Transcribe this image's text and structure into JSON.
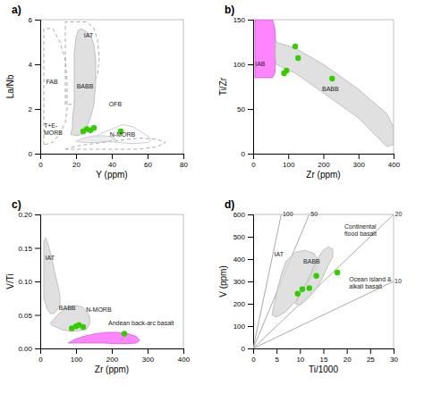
{
  "chart_data": [
    {
      "type": "scatter",
      "title": "a)",
      "xlabel": "Y (ppm)",
      "ylabel": "La/Nb",
      "xlim": [
        0,
        80
      ],
      "ylim": [
        0,
        6
      ],
      "xticks": [
        0,
        20,
        40,
        60,
        80
      ],
      "yticks": [
        0,
        2,
        4,
        6
      ],
      "series": [
        {
          "type": "line",
          "line_style": "dashed",
          "color": "#aaaaaa",
          "x": [
            14,
            18,
            25,
            35,
            45,
            55,
            65,
            70,
            65,
            55,
            45,
            35,
            25,
            18,
            14
          ],
          "values": [
            0.2,
            0.3,
            0.4,
            0.5,
            0.6,
            0.7,
            0.65,
            0.5,
            0.3,
            0.2,
            0.2,
            0.2,
            0.2,
            0.2,
            0.2
          ]
        },
        {
          "type": "line",
          "line_style": "dashed",
          "color": "#aaaaaa",
          "x": [
            2,
            2,
            7,
            11,
            14,
            15,
            15,
            14,
            11,
            7,
            2
          ],
          "values": [
            0.4,
            5.6,
            5.6,
            5.0,
            4.2,
            3.2,
            2.0,
            1.4,
            0.9,
            0.5,
            0.4
          ]
        },
        {
          "type": "line",
          "line_style": "dashed",
          "color": "#aaaaaa",
          "x": [
            14,
            14,
            17,
            21,
            26,
            30,
            32,
            33,
            32,
            28,
            24,
            20,
            17,
            14
          ],
          "values": [
            2.2,
            5.9,
            5.9,
            5.9,
            5.9,
            5.6,
            5.1,
            4.3,
            3.5,
            3.0,
            2.7,
            2.4,
            2.2,
            2.2
          ]
        },
        {
          "type": "line",
          "line_style": "solid",
          "color": "#ccccdd",
          "x": [
            28,
            34,
            40,
            46,
            52,
            56,
            60,
            62,
            60,
            52,
            44,
            36,
            28
          ],
          "values": [
            0.6,
            0.9,
            1.1,
            1.3,
            1.2,
            1.0,
            0.8,
            0.6,
            0.5,
            0.45,
            0.5,
            0.55,
            0.6
          ]
        },
        {
          "type": "area",
          "color": "#e8e8f0",
          "x": [
            20,
            24,
            30,
            36,
            40,
            42,
            38,
            32,
            26,
            22,
            20
          ],
          "values": [
            0.55,
            0.7,
            0.8,
            0.8,
            0.75,
            0.65,
            0.55,
            0.5,
            0.5,
            0.52,
            0.55
          ]
        },
        {
          "type": "area",
          "color": "#d8d8d8",
          "x": [
            17,
            18,
            18,
            19,
            19,
            19,
            20,
            21,
            23,
            25,
            28,
            30,
            31,
            31,
            30,
            28,
            26,
            24,
            21,
            18
          ],
          "values": [
            0.85,
            1.2,
            1.6,
            2.2,
            3.5,
            4.5,
            5.2,
            5.5,
            5.6,
            5.5,
            5.3,
            4.9,
            4.2,
            3.2,
            2.2,
            1.6,
            1.2,
            0.9,
            0.8,
            0.85
          ]
        },
        {
          "type": "scatter",
          "color": "#33cc00",
          "x": [
            24,
            26,
            28,
            30,
            45
          ],
          "values": [
            1.0,
            1.1,
            1.05,
            1.15,
            1.0
          ]
        }
      ],
      "annotations": [
        {
          "text": "IAT",
          "x": 27,
          "y": 5.3
        },
        {
          "text": "FAB",
          "x": 6.5,
          "y": 3.2
        },
        {
          "text": "BABB",
          "x": 25,
          "y": 3.0
        },
        {
          "text": "OFB",
          "x": 42,
          "y": 2.2
        },
        {
          "text": "T+E-\nMORB",
          "x": 2,
          "y": 1.1
        },
        {
          "text": "N-MORB",
          "x": 46,
          "y": 0.85
        }
      ]
    },
    {
      "type": "scatter",
      "title": "b)",
      "xlabel": "Zr (ppm)",
      "ylabel": "Ti/Zr",
      "xlim": [
        0,
        400
      ],
      "ylim": [
        0,
        150
      ],
      "xticks": [
        0,
        100,
        200,
        300,
        400
      ],
      "yticks": [
        0,
        50,
        100,
        150
      ],
      "series": [
        {
          "type": "area",
          "color": "#ff66ff",
          "x": [
            5,
            5,
            55,
            62,
            65,
            62,
            55,
            5
          ],
          "values": [
            85,
            150,
            150,
            140,
            120,
            90,
            85,
            85
          ]
        },
        {
          "type": "area",
          "color": "#d8d8d8",
          "x": [
            62,
            65,
            120,
            200,
            300,
            380,
            400,
            400,
            380,
            300,
            200,
            120,
            65,
            62,
            62
          ],
          "values": [
            128,
            125,
            118,
            100,
            72,
            45,
            30,
            10,
            8,
            40,
            68,
            90,
            100,
            110,
            128
          ]
        },
        {
          "type": "scatter",
          "color": "#33cc00",
          "x": [
            88,
            95,
            120,
            128,
            225
          ],
          "values": [
            90,
            93,
            120,
            107,
            84
          ]
        }
      ],
      "annotations": [
        {
          "text": "IAB",
          "x": 20,
          "y": 100
        },
        {
          "text": "BABB",
          "x": 220,
          "y": 72
        }
      ]
    },
    {
      "type": "scatter",
      "title": "c)",
      "xlabel": "Zr (ppm)",
      "ylabel": "V/Ti",
      "xlim": [
        0,
        400
      ],
      "ylim": [
        0,
        0.2
      ],
      "xticks": [
        0,
        100,
        200,
        300,
        400
      ],
      "yticks": [
        {
          "value": 0,
          "label": "0.00"
        },
        0.05,
        {
          "value": 0.1,
          "label": "0.10"
        },
        0.15,
        {
          "value": 0.2,
          "label": "0.20"
        }
      ],
      "series": [
        {
          "type": "area",
          "color": "#d8d8d8",
          "x": [
            10,
            10,
            15,
            22,
            32,
            42,
            50,
            55,
            55,
            48,
            38,
            28,
            20,
            14,
            10
          ],
          "values": [
            0.075,
            0.16,
            0.165,
            0.155,
            0.135,
            0.11,
            0.092,
            0.078,
            0.065,
            0.058,
            0.052,
            0.052,
            0.058,
            0.068,
            0.075
          ]
        },
        {
          "type": "area",
          "color": "#d8d8d8",
          "x": [
            28,
            36,
            48,
            62,
            80,
            100,
            118,
            130,
            138,
            138,
            128,
            105,
            82,
            60,
            44,
            32,
            28
          ],
          "values": [
            0.038,
            0.042,
            0.05,
            0.056,
            0.062,
            0.064,
            0.062,
            0.056,
            0.048,
            0.036,
            0.028,
            0.026,
            0.026,
            0.028,
            0.032,
            0.035,
            0.038
          ]
        },
        {
          "type": "area",
          "color": "#ff66ff",
          "x": [
            78,
            95,
            120,
            155,
            185,
            215,
            245,
            268,
            278,
            268,
            240,
            210,
            180,
            150,
            120,
            95,
            78
          ],
          "values": [
            0.008,
            0.013,
            0.018,
            0.022,
            0.024,
            0.024,
            0.022,
            0.018,
            0.012,
            0.008,
            0.007,
            0.007,
            0.008,
            0.008,
            0.008,
            0.008,
            0.008
          ]
        },
        {
          "type": "scatter",
          "color": "#33cc00",
          "x": [
            88,
            100,
            108,
            120,
            235
          ],
          "values": [
            0.03,
            0.033,
            0.035,
            0.032,
            0.022
          ]
        }
      ],
      "annotations": [
        {
          "text": "IAT",
          "x": 14,
          "y": 0.135
        },
        {
          "text": "BABB",
          "x": 52,
          "y": 0.06
        },
        {
          "text": "N-MORB",
          "x": 128,
          "y": 0.058
        },
        {
          "text": "Andean back-arc basalt",
          "x": 190,
          "y": 0.038
        }
      ]
    },
    {
      "type": "scatter",
      "title": "d)",
      "xlabel": "Ti/1000",
      "ylabel": "V (ppm)",
      "xlim": [
        0,
        30
      ],
      "ylim": [
        0,
        600
      ],
      "xticks": [
        0,
        5,
        10,
        15,
        20,
        25,
        30
      ],
      "yticks": [
        0,
        100,
        200,
        300,
        400,
        500,
        600
      ],
      "series": [
        {
          "type": "line",
          "line_style": "solid",
          "color": "#aaaaaa",
          "x": [
            0,
            30
          ],
          "values": [
            0,
            300
          ]
        },
        {
          "type": "line",
          "line_style": "solid",
          "color": "#aaaaaa",
          "x": [
            0,
            30
          ],
          "values": [
            0,
            600
          ]
        },
        {
          "type": "line",
          "line_style": "solid",
          "color": "#aaaaaa",
          "x": [
            0,
            12
          ],
          "values": [
            0,
            600
          ]
        },
        {
          "type": "line",
          "line_style": "solid",
          "color": "#aaaaaa",
          "x": [
            0,
            6
          ],
          "values": [
            0,
            600
          ]
        },
        {
          "type": "area",
          "color": "#d8d8d8",
          "x": [
            4,
            5,
            6,
            7,
            9,
            11,
            13,
            14,
            13,
            11,
            9,
            7,
            5,
            4
          ],
          "values": [
            150,
            250,
            330,
            390,
            430,
            440,
            425,
            390,
            330,
            270,
            210,
            165,
            140,
            150
          ]
        },
        {
          "type": "area",
          "color": "#d8d8d8",
          "x": [
            9,
            10,
            11,
            12,
            13,
            14,
            15,
            16,
            17,
            17,
            16,
            15,
            14,
            13,
            12,
            11,
            10,
            9
          ],
          "values": [
            200,
            240,
            280,
            320,
            370,
            410,
            440,
            455,
            445,
            410,
            370,
            325,
            285,
            255,
            230,
            210,
            195,
            200
          ]
        },
        {
          "type": "scatter",
          "color": "#33cc00",
          "x": [
            9.5,
            10.5,
            12.0,
            13.5,
            18.0
          ],
          "values": [
            245,
            265,
            270,
            325,
            340
          ]
        }
      ],
      "annotations": [
        {
          "text": "10",
          "x": 30.2,
          "y": 300
        },
        {
          "text": "20",
          "x": 30.3,
          "y": 600
        },
        {
          "text": "50",
          "x": 12.3,
          "y": 600
        },
        {
          "text": "100",
          "x": 6.3,
          "y": 600
        },
        {
          "text": "IAT",
          "x": 5.5,
          "y": 420
        },
        {
          "text": "BABB",
          "x": 12.5,
          "y": 390
        },
        {
          "text": "Continental\nflood basalt",
          "x": 19.5,
          "y": 530
        },
        {
          "text": "Ocean island &\nalkali basalt",
          "x": 20.5,
          "y": 295
        }
      ]
    }
  ]
}
